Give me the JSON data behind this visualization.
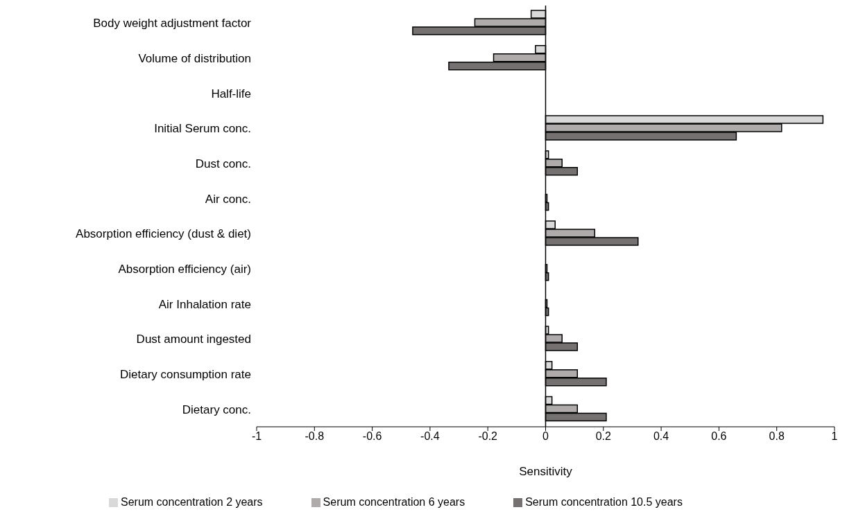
{
  "chart_data": {
    "type": "bar",
    "orientation": "horizontal",
    "xlabel": "Sensitivity",
    "categories": [
      "Body weight adjustment factor",
      "Volume of distribution",
      "Half-life",
      "Initial Serum conc.",
      "Dust conc.",
      "Air conc.",
      "Absorption efficiency (dust & diet)",
      "Absorption efficiency (air)",
      "Air Inhalation rate",
      "Dust amount ingested",
      "Dietary consumption rate",
      "Dietary conc."
    ],
    "series": [
      {
        "name": "Serum concentration 2 years",
        "color": "#d9d9d9",
        "values": [
          -0.05,
          -0.035,
          0,
          0.96,
          0.01,
          null,
          0.033,
          null,
          null,
          0.01,
          0.022,
          0.022
        ]
      },
      {
        "name": "Serum concentration 6 years",
        "color": "#afabab",
        "values": [
          -0.245,
          -0.18,
          0,
          0.817,
          0.057,
          0.005,
          0.17,
          0.005,
          0.005,
          0.057,
          0.11,
          0.11
        ]
      },
      {
        "name": "Serum concentration 10.5 years",
        "color": "#767171",
        "values": [
          -0.46,
          -0.335,
          0,
          0.66,
          0.11,
          0.01,
          0.32,
          0.01,
          0.01,
          0.11,
          0.21,
          0.21
        ]
      }
    ],
    "xlim": [
      -1,
      1
    ],
    "xticks": [
      -1,
      -0.8,
      -0.6,
      -0.4,
      -0.2,
      0,
      0.2,
      0.4,
      0.6,
      0.8,
      1
    ],
    "legend": "bottom"
  }
}
